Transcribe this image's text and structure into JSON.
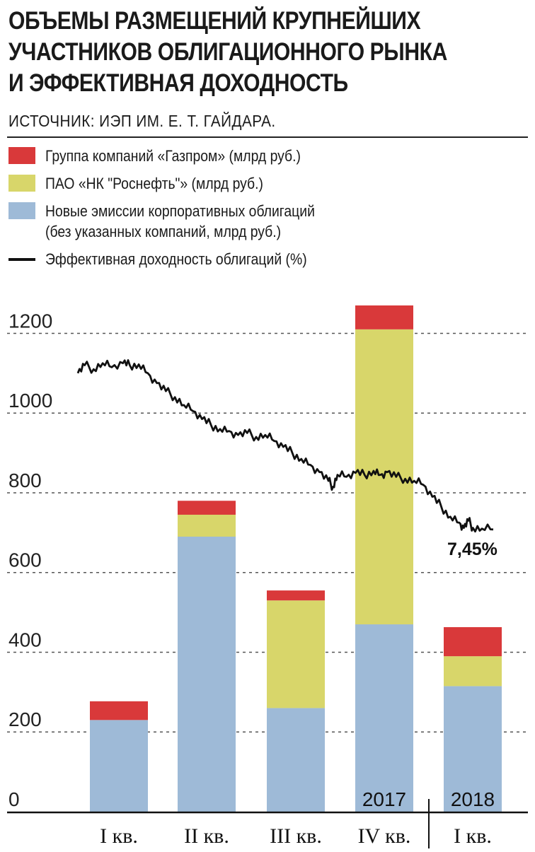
{
  "title_lines": [
    "ОБЪЕМЫ РАЗМЕЩЕНИЙ КРУПНЕЙШИХ",
    "УЧАСТНИКОВ ОБЛИГАЦИОННОГО РЫНКА",
    "И ЭФФЕКТИВНАЯ ДОХОДНОСТЬ"
  ],
  "source": "ИСТОЧНИК: ИЭП ИМ. Е. Т. ГАЙДАРА.",
  "legend": {
    "gazprom": "Группа компаний «Газпром» (млрд руб.)",
    "rosneft": "ПАО «НК \"Роснефть\"» (млрд руб.)",
    "other_line1": "Новые эмиссии корпоративных облигаций",
    "other_line2": "(без указанных компаний, млрд руб.)",
    "yield": "Эффективная доходность облигаций (%)"
  },
  "colors": {
    "gazprom": "#d9393a",
    "rosneft": "#d8d66a",
    "other": "#9ebad7",
    "yield": "#111111",
    "grid": "#555555"
  },
  "chart_data": {
    "type": "bar",
    "stacked": true,
    "categories": [
      "I кв.",
      "II кв.",
      "III кв.",
      "IV кв.",
      "I кв."
    ],
    "year_labels": [
      {
        "text": "2017",
        "category_index": 3
      },
      {
        "text": "2018",
        "category_index": 4
      }
    ],
    "series": [
      {
        "name": "Новые эмиссии корпоративных облигаций (без указанных компаний, млрд руб.)",
        "key": "other",
        "values": [
          230,
          690,
          260,
          470,
          315
        ]
      },
      {
        "name": "ПАО «НК \"Роснефть\"» (млрд руб.)",
        "key": "rosneft",
        "values": [
          0,
          55,
          270,
          740,
          75
        ]
      },
      {
        "name": "Группа компаний «Газпром» (млрд руб.)",
        "key": "gazprom",
        "values": [
          47,
          35,
          25,
          60,
          73
        ]
      }
    ],
    "yticks": [
      0,
      200,
      400,
      600,
      800,
      1000,
      1200
    ],
    "ylim": [
      0,
      1270
    ],
    "grid": true,
    "line": {
      "name": "Эффективная доходность облигаций (%)",
      "note": "line plotted on bar-axis scale",
      "points": [
        [
          0.0,
          1100
        ],
        [
          0.15,
          1120
        ],
        [
          0.35,
          1110
        ],
        [
          0.55,
          1125
        ],
        [
          0.75,
          1115
        ],
        [
          1.0,
          1125
        ],
        [
          1.15,
          1120
        ],
        [
          1.35,
          1122
        ],
        [
          1.55,
          1100
        ],
        [
          1.75,
          1075
        ],
        [
          1.95,
          1055
        ],
        [
          2.15,
          1040
        ],
        [
          2.35,
          1020
        ],
        [
          2.55,
          1005
        ],
        [
          2.75,
          985
        ],
        [
          2.95,
          970
        ],
        [
          3.15,
          960
        ],
        [
          3.35,
          955
        ],
        [
          3.55,
          945
        ],
        [
          3.75,
          950
        ],
        [
          3.95,
          940
        ],
        [
          4.15,
          945
        ],
        [
          4.35,
          930
        ],
        [
          4.55,
          915
        ],
        [
          4.75,
          900
        ],
        [
          4.95,
          885
        ],
        [
          5.15,
          870
        ],
        [
          5.35,
          852
        ],
        [
          5.55,
          830
        ],
        [
          5.65,
          815
        ],
        [
          5.75,
          845
        ],
        [
          5.95,
          840
        ],
        [
          6.15,
          850
        ],
        [
          6.35,
          845
        ],
        [
          6.55,
          855
        ],
        [
          6.7,
          845
        ],
        [
          6.85,
          852
        ],
        [
          7.05,
          840
        ],
        [
          7.25,
          835
        ],
        [
          7.45,
          830
        ],
        [
          7.65,
          820
        ],
        [
          7.85,
          790
        ],
        [
          8.05,
          765
        ],
        [
          8.25,
          740
        ],
        [
          8.45,
          725
        ],
        [
          8.55,
          712
        ],
        [
          8.65,
          730
        ],
        [
          8.75,
          712
        ],
        [
          8.95,
          710
        ],
        [
          9.2,
          708
        ]
      ],
      "x_domain": [
        0,
        9.2
      ],
      "end_label": "7,45%"
    }
  }
}
